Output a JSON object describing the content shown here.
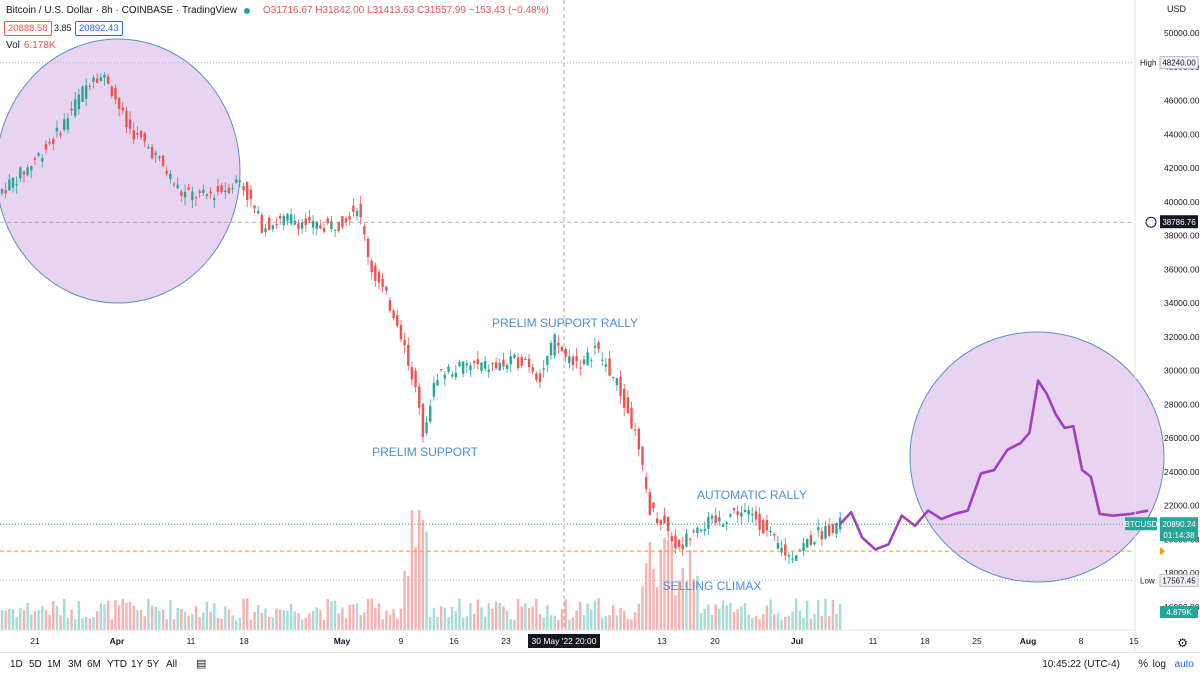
{
  "header": {
    "title": "Bitcoin / U.S. Dollar · 8h · COINBASE · TradingView",
    "ohlc": "O31716.67 H31842.00 L31413.63 C31557.99 −153.43 (−0.48%)",
    "bid": "20888.58",
    "spread": "3.85",
    "ask": "20892.43",
    "vol_label": "Vol",
    "vol_value": "6.178K"
  },
  "axis": {
    "currency": "USD"
  },
  "bottom": {
    "timeframes": [
      "1D",
      "5D",
      "1M",
      "3M",
      "6M",
      "YTD",
      "1Y",
      "5Y",
      "All"
    ],
    "clock": "10:45:22 (UTC-4)",
    "percent_label": "%",
    "log_label": "log",
    "auto_label": "auto"
  },
  "colors": {
    "up": "#26a69a",
    "down": "#ef5350",
    "projection": "#a040c0",
    "ellipse_fill": "#e8d4f0",
    "ellipse_stroke": "#5a8fc8",
    "annotation": "#4a8fd8"
  },
  "chart_data": {
    "type": "candlestick",
    "price_axis": {
      "ticks": [
        16000,
        18000,
        20000,
        22000,
        24000,
        26000,
        28000,
        30000,
        32000,
        34000,
        36000,
        38000,
        40000,
        42000,
        44000,
        46000,
        48000,
        50000
      ],
      "tick_labels": [
        "16000.00",
        "18000.00",
        "20000.00",
        "22000.00",
        "24000.00",
        "26000.00",
        "28000.00",
        "30000.00",
        "32000.00",
        "34000.00",
        "36000.00",
        "38000.00",
        "40000.00",
        "42000.00",
        "44000.00",
        "46000.00",
        "48000.00",
        "50000.00"
      ],
      "range": [
        15800,
        51000
      ]
    },
    "time_axis": {
      "labels": [
        "21",
        "Apr",
        "11",
        "18",
        "May",
        "9",
        "16",
        "23",
        "30 May '22  20:00",
        "13",
        "20",
        "Jul",
        "11",
        "18",
        "25",
        "Aug",
        "8",
        "15"
      ]
    },
    "markers": {
      "high": {
        "label": "High",
        "value": 48240.0,
        "text": "48240.00"
      },
      "low": {
        "label": "Low",
        "value": 17567.45,
        "text": "17567.45"
      },
      "crosshair": {
        "value": 38786.76,
        "text": "38786.76"
      },
      "last_price": {
        "symbol": "BTCUSD",
        "value": 20890.24,
        "text": "20890.24",
        "countdown": "01:14:38"
      },
      "volume_now": {
        "text": "4.879K"
      },
      "support_line": 19300
    },
    "annotations": [
      {
        "text": "PRELIM SUPPORT RALLY"
      },
      {
        "text": "PRELIM SUPPORT"
      },
      {
        "text": "AUTOMATIC RALLY"
      },
      {
        "text": "SELLING CLIMAX"
      }
    ],
    "anchors": [
      [
        0,
        40500
      ],
      [
        8,
        42000
      ],
      [
        16,
        44000
      ],
      [
        26,
        47600
      ],
      [
        30,
        47200
      ],
      [
        35,
        44500
      ],
      [
        42,
        43000
      ],
      [
        50,
        40500
      ],
      [
        56,
        40300
      ],
      [
        62,
        40800
      ],
      [
        66,
        41300
      ],
      [
        72,
        38600
      ],
      [
        80,
        39000
      ],
      [
        86,
        38500
      ],
      [
        93,
        38700
      ],
      [
        98,
        39800
      ],
      [
        102,
        36000
      ],
      [
        109,
        33000
      ],
      [
        113,
        29800
      ],
      [
        116,
        26500
      ],
      [
        120,
        29800
      ],
      [
        128,
        30300
      ],
      [
        136,
        30200
      ],
      [
        144,
        30700
      ],
      [
        148,
        29600
      ],
      [
        152,
        31800
      ],
      [
        155,
        30800
      ],
      [
        160,
        30400
      ],
      [
        163,
        31400
      ],
      [
        169,
        29200
      ],
      [
        174,
        26200
      ],
      [
        178,
        21800
      ],
      [
        182,
        20900
      ],
      [
        186,
        19300
      ],
      [
        190,
        20800
      ],
      [
        196,
        21000
      ],
      [
        202,
        21700
      ],
      [
        207,
        21300
      ],
      [
        212,
        19800
      ],
      [
        216,
        19000
      ],
      [
        224,
        20300
      ],
      [
        229,
        20890
      ]
    ],
    "candle_count": 230,
    "projection": [
      [
        0,
        20900
      ],
      [
        5,
        21600
      ],
      [
        10,
        20100
      ],
      [
        16,
        19400
      ],
      [
        22,
        19700
      ],
      [
        28,
        21400
      ],
      [
        34,
        20800
      ],
      [
        40,
        21700
      ],
      [
        46,
        21200
      ],
      [
        52,
        21500
      ],
      [
        58,
        21700
      ],
      [
        64,
        23900
      ],
      [
        70,
        24100
      ],
      [
        76,
        25300
      ],
      [
        82,
        25700
      ],
      [
        86,
        26300
      ],
      [
        90,
        29400
      ],
      [
        94,
        28600
      ],
      [
        98,
        27400
      ],
      [
        102,
        26600
      ],
      [
        106,
        26700
      ],
      [
        110,
        24100
      ],
      [
        114,
        23700
      ],
      [
        118,
        21500
      ],
      [
        124,
        21400
      ],
      [
        132,
        21500
      ],
      [
        140,
        21700
      ]
    ]
  }
}
